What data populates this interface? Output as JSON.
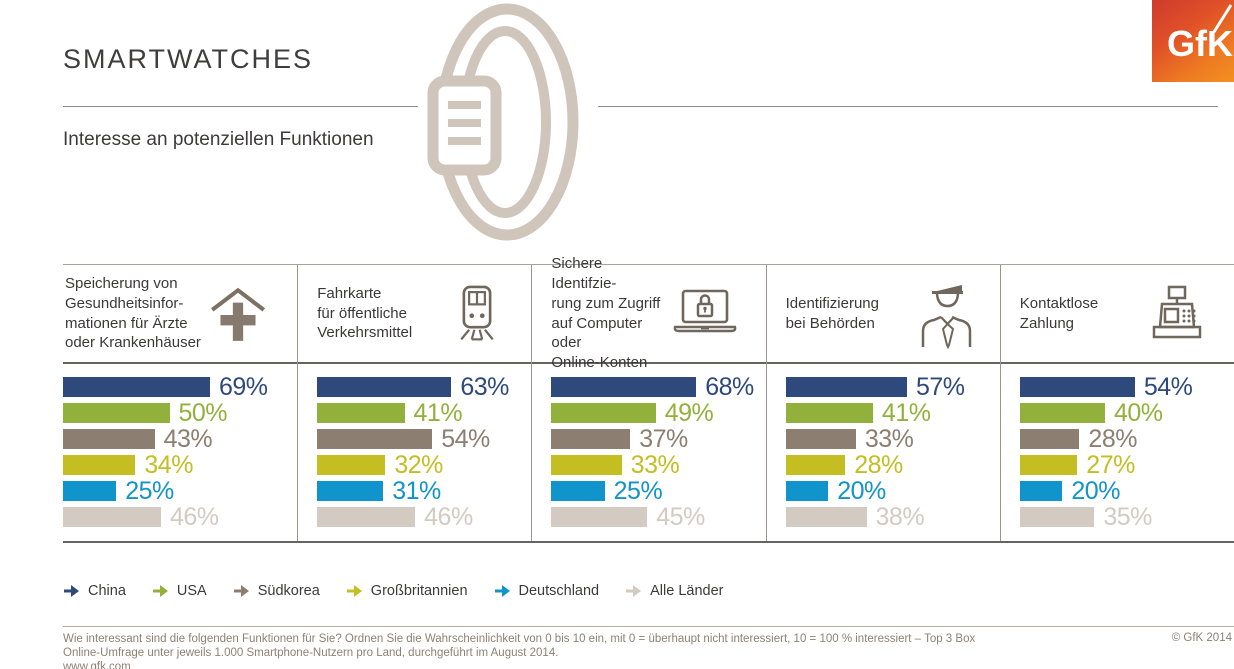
{
  "page": {
    "title": "SMARTWATCHES",
    "subtitle": "Interesse an potenziellen Funktionen",
    "logo_text": "GfK"
  },
  "chart_data": {
    "type": "bar",
    "orientation": "horizontal",
    "title": "Interesse an potenziellen Funktionen",
    "value_unit": "%",
    "xlim": [
      0,
      100
    ],
    "legend_position": "bottom",
    "series": [
      {
        "name": "China",
        "color": "#2e4a7c"
      },
      {
        "name": "USA",
        "color": "#92b13c"
      },
      {
        "name": "Südkorea",
        "color": "#8c7e71"
      },
      {
        "name": "Großbritannien",
        "color": "#c4be23"
      },
      {
        "name": "Deutschland",
        "color": "#1193cb"
      },
      {
        "name": "Alle Länder",
        "color": "#d3cbc2"
      }
    ],
    "categories": [
      {
        "icon": "health-house-icon",
        "label_lines": [
          "Speicherung von",
          "Gesundheitsinfor-",
          "mationen für Ärzte",
          "oder Krankenhäuser"
        ],
        "values": [
          69,
          50,
          43,
          34,
          25,
          46
        ]
      },
      {
        "icon": "train-icon",
        "label_lines": [
          "Fahrkarte",
          "für öffentliche",
          "Verkehrsmittel"
        ],
        "values": [
          63,
          41,
          54,
          32,
          31,
          46
        ]
      },
      {
        "icon": "laptop-lock-icon",
        "label_lines": [
          "Sichere Identifzie-",
          "rung zum Zugriff",
          "auf Computer oder",
          "Online-Konten"
        ],
        "values": [
          68,
          49,
          37,
          33,
          25,
          45
        ]
      },
      {
        "icon": "officer-icon",
        "label_lines": [
          "Identifizierung",
          "bei Behörden"
        ],
        "values": [
          57,
          41,
          33,
          28,
          20,
          38
        ]
      },
      {
        "icon": "cash-register-icon",
        "label_lines": [
          "Kontaktlose",
          "Zahlung"
        ],
        "values": [
          54,
          40,
          28,
          27,
          20,
          35
        ]
      }
    ]
  },
  "footer": {
    "line1": "Wie interessant sind die folgenden Funktionen für Sie? Ordnen Sie die Wahrscheinlichkeit von 0 bis 10 ein, mit 0 = überhaupt nicht interessiert, 10 = 100 % interessiert – Top 3 Box",
    "line2": "Online-Umfrage unter jeweils 1.000 Smartphone-Nutzern pro Land, durchgeführt im August 2014.",
    "line3": "www.gfk.com",
    "copyright": "© GfK 2014"
  }
}
